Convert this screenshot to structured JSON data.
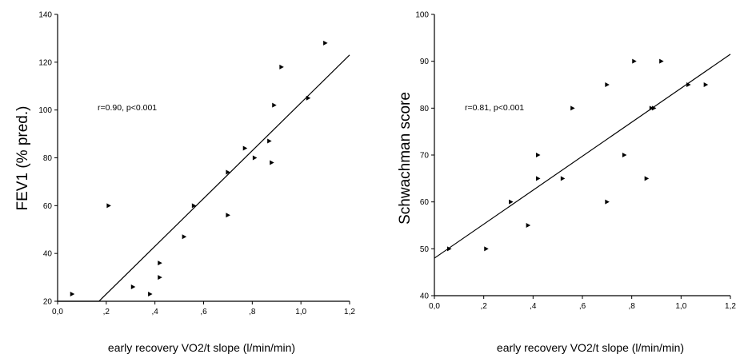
{
  "chart_data": [
    {
      "type": "scatter",
      "xlabel": "early recovery VO2/t slope (l/min/min)",
      "ylabel": "FEV1 (% pred.)",
      "annotation": "r=0.90, p<0.001",
      "xlim": [
        0,
        1.2
      ],
      "ylim": [
        20,
        140
      ],
      "x_ticks": [
        "0,0",
        ",2",
        ",4",
        ",6",
        ",8",
        "1,0",
        "1,2"
      ],
      "y_ticks": [
        "20",
        "40",
        "60",
        "80",
        "100",
        "120",
        "140"
      ],
      "grid": false,
      "marker": "triangle",
      "points": [
        {
          "x": 0.06,
          "y": 23
        },
        {
          "x": 0.21,
          "y": 60
        },
        {
          "x": 0.31,
          "y": 26
        },
        {
          "x": 0.38,
          "y": 23
        },
        {
          "x": 0.42,
          "y": 36
        },
        {
          "x": 0.42,
          "y": 30
        },
        {
          "x": 0.52,
          "y": 47
        },
        {
          "x": 0.56,
          "y": 60
        },
        {
          "x": 0.7,
          "y": 74
        },
        {
          "x": 0.7,
          "y": 56
        },
        {
          "x": 0.77,
          "y": 84
        },
        {
          "x": 0.81,
          "y": 80
        },
        {
          "x": 0.87,
          "y": 87
        },
        {
          "x": 0.88,
          "y": 78
        },
        {
          "x": 0.89,
          "y": 102
        },
        {
          "x": 0.92,
          "y": 118
        },
        {
          "x": 1.03,
          "y": 105
        },
        {
          "x": 1.1,
          "y": 128
        }
      ],
      "fit_line": [
        {
          "x": 0.0,
          "y": 20
        },
        {
          "x": 0.17,
          "y": 20
        },
        {
          "x": 1.2,
          "y": 123
        }
      ]
    },
    {
      "type": "scatter",
      "xlabel": "early recovery VO2/t slope (l/min/min)",
      "ylabel": "Schwachman score",
      "annotation": "r=0.81, p<0.001",
      "xlim": [
        0,
        1.2
      ],
      "ylim": [
        40,
        100
      ],
      "x_ticks": [
        "0,0",
        ",2",
        ",4",
        ",6",
        ",8",
        "1,0",
        "1,2"
      ],
      "y_ticks": [
        "40",
        "50",
        "60",
        "70",
        "80",
        "90",
        "100"
      ],
      "grid": false,
      "marker": "triangle",
      "points": [
        {
          "x": 0.06,
          "y": 50
        },
        {
          "x": 0.21,
          "y": 50
        },
        {
          "x": 0.31,
          "y": 60
        },
        {
          "x": 0.38,
          "y": 55
        },
        {
          "x": 0.42,
          "y": 70
        },
        {
          "x": 0.42,
          "y": 65
        },
        {
          "x": 0.52,
          "y": 65
        },
        {
          "x": 0.56,
          "y": 80
        },
        {
          "x": 0.7,
          "y": 85
        },
        {
          "x": 0.7,
          "y": 60
        },
        {
          "x": 0.77,
          "y": 70
        },
        {
          "x": 0.81,
          "y": 90
        },
        {
          "x": 0.86,
          "y": 65
        },
        {
          "x": 0.88,
          "y": 80
        },
        {
          "x": 0.89,
          "y": 80
        },
        {
          "x": 0.92,
          "y": 90
        },
        {
          "x": 1.03,
          "y": 85
        },
        {
          "x": 1.1,
          "y": 85
        }
      ],
      "fit_line": [
        {
          "x": 0.0,
          "y": 48
        },
        {
          "x": 1.2,
          "y": 91.5
        }
      ]
    }
  ]
}
